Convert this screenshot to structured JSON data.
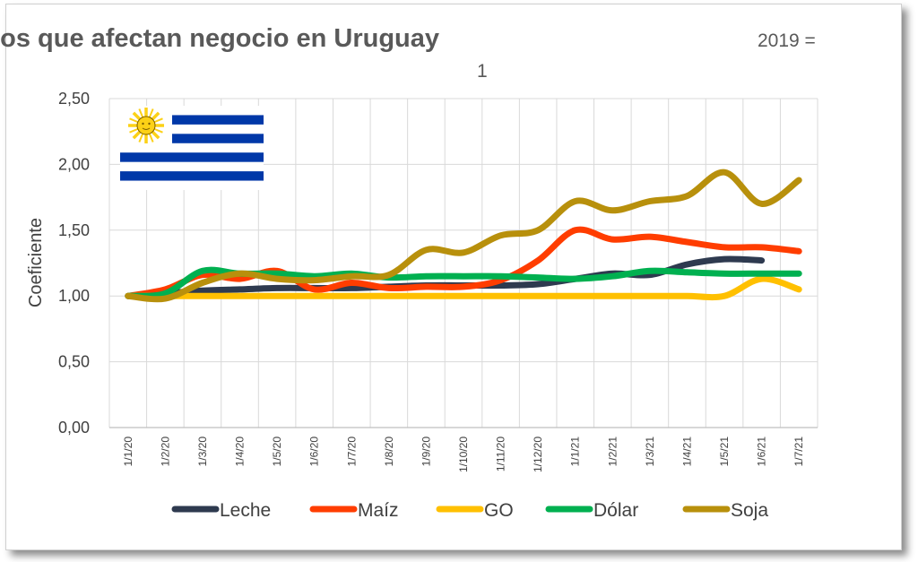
{
  "chart_data": {
    "type": "line",
    "title": "Precios relativos que afectan negocio en Uruguay",
    "subtitle": "2019 = 1",
    "xlabel": "",
    "ylabel": "Coeficiente",
    "ylim": [
      0,
      2.5
    ],
    "yticks": [
      "0,00",
      "0,50",
      "1,00",
      "1,50",
      "2,00",
      "2,50"
    ],
    "grid": true,
    "legend_position": "bottom",
    "categories": [
      "1/1/20",
      "1/2/20",
      "1/3/20",
      "1/4/20",
      "1/5/20",
      "1/6/20",
      "1/7/20",
      "1/8/20",
      "1/9/20",
      "1/10/20",
      "1/11/20",
      "1/12/20",
      "1/1/21",
      "1/2/21",
      "1/3/21",
      "1/4/21",
      "1/5/21",
      "1/6/21",
      "1/7/21"
    ],
    "series": [
      {
        "name": "Leche",
        "color": "#2e3a4f",
        "values": [
          1.0,
          1.02,
          1.04,
          1.05,
          1.06,
          1.06,
          1.06,
          1.07,
          1.08,
          1.08,
          1.08,
          1.09,
          1.13,
          1.17,
          1.16,
          1.24,
          1.28,
          1.27,
          null
        ]
      },
      {
        "name": "Maíz",
        "color": "#ff3d00",
        "values": [
          1.0,
          1.05,
          1.16,
          1.13,
          1.19,
          1.05,
          1.1,
          1.06,
          1.07,
          1.07,
          1.12,
          1.27,
          1.5,
          1.43,
          1.45,
          1.41,
          1.37,
          1.37,
          1.34
        ]
      },
      {
        "name": "GO",
        "color": "#ffc000",
        "values": [
          1.0,
          1.0,
          1.0,
          1.0,
          1.0,
          1.0,
          1.0,
          1.0,
          1.0,
          1.0,
          1.0,
          1.0,
          1.0,
          1.0,
          1.0,
          1.0,
          1.0,
          1.13,
          1.05
        ]
      },
      {
        "name": "Dólar",
        "color": "#00b050",
        "values": [
          1.0,
          1.02,
          1.19,
          1.17,
          1.17,
          1.15,
          1.17,
          1.14,
          1.15,
          1.15,
          1.15,
          1.14,
          1.13,
          1.15,
          1.19,
          1.18,
          1.17,
          1.17,
          1.17
        ]
      },
      {
        "name": "Soja",
        "color": "#b8900c",
        "values": [
          1.0,
          0.98,
          1.1,
          1.17,
          1.13,
          1.12,
          1.15,
          1.16,
          1.35,
          1.33,
          1.46,
          1.5,
          1.72,
          1.65,
          1.72,
          1.76,
          1.94,
          1.7,
          1.88
        ]
      }
    ]
  },
  "flag": {
    "name": "Uruguay flag",
    "sun_color": "#fcd116",
    "stripe_color": "#0038a8"
  }
}
